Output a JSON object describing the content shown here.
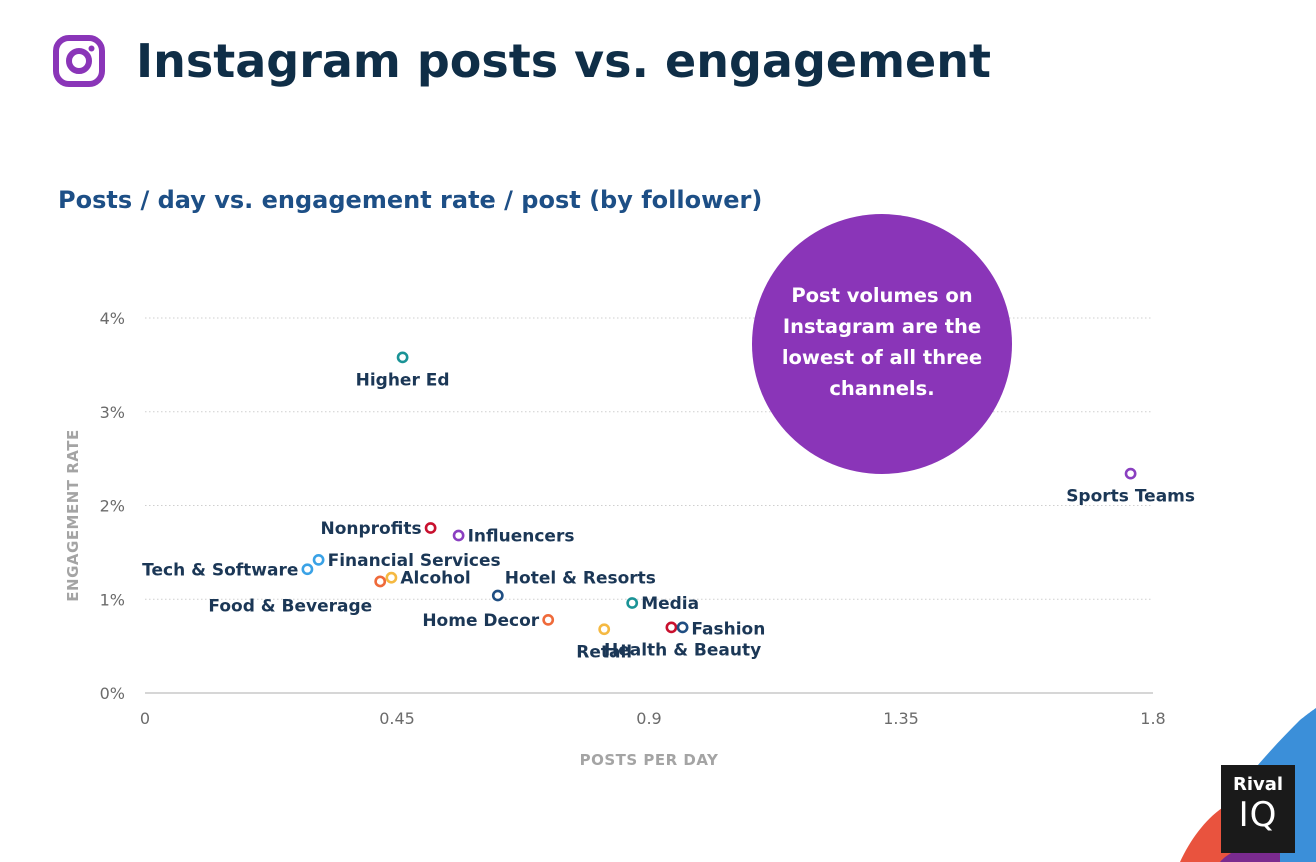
{
  "header": {
    "title": "Instagram posts vs. engagement",
    "logo_icon": "instagram-icon"
  },
  "colors": {
    "title": "#0f2e47",
    "subtitle": "#1d4f86",
    "callout_bg": "#8a35b8",
    "teal": "#1a9396",
    "purple": "#8a3fc0",
    "red": "#c8102e",
    "orange": "#ef6a3a",
    "yellow": "#f5b942",
    "light_blue": "#3aa2e6",
    "navy": "#1f4e82"
  },
  "callout": {
    "text": "Post volumes on Instagram are the lowest of all three channels."
  },
  "brand": {
    "top": "Rival",
    "bottom": "IQ"
  },
  "chart_data": {
    "type": "scatter",
    "title": "Posts / day vs. engagement rate / post (by follower)",
    "xlabel": "POSTS PER DAY",
    "ylabel": "ENGAGEMENT RATE",
    "xlim": [
      0,
      1.8
    ],
    "ylim": [
      0,
      4
    ],
    "x_ticks": [
      "0",
      "0.45",
      "0.9",
      "1.35",
      "1.8"
    ],
    "y_ticks": [
      "0%",
      "1%",
      "2%",
      "3%",
      "4%"
    ],
    "grid": "horizontal dotted",
    "points": [
      {
        "label": "Higher Ed",
        "x": 0.46,
        "y": 3.58,
        "color": "#1a9396",
        "label_pos": "below"
      },
      {
        "label": "Sports Teams",
        "x": 1.76,
        "y": 2.34,
        "color": "#8a3fc0",
        "label_pos": "below"
      },
      {
        "label": "Nonprofits",
        "x": 0.51,
        "y": 1.76,
        "color": "#c8102e",
        "label_pos": "left"
      },
      {
        "label": "Influencers",
        "x": 0.56,
        "y": 1.68,
        "color": "#8a3fc0",
        "label_pos": "right"
      },
      {
        "label": "Financial Services",
        "x": 0.31,
        "y": 1.42,
        "color": "#3aa2e6",
        "label_pos": "right"
      },
      {
        "label": "Tech & Software",
        "x": 0.29,
        "y": 1.32,
        "color": "#3aa2e6",
        "label_pos": "left"
      },
      {
        "label": "Alcohol",
        "x": 0.44,
        "y": 1.23,
        "color": "#f5b942",
        "label_pos": "right"
      },
      {
        "label": "Food & Beverage",
        "x": 0.42,
        "y": 1.19,
        "color": "#ef6a3a",
        "label_pos": "below-left"
      },
      {
        "label": "Hotel & Resorts",
        "x": 0.63,
        "y": 1.04,
        "color": "#1f4e82",
        "label_pos": "above-right"
      },
      {
        "label": "Media",
        "x": 0.87,
        "y": 0.96,
        "color": "#1a9396",
        "label_pos": "right"
      },
      {
        "label": "Home Decor",
        "x": 0.72,
        "y": 0.78,
        "color": "#ef6a3a",
        "label_pos": "left"
      },
      {
        "label": "Retail",
        "x": 0.82,
        "y": 0.68,
        "color": "#f5b942",
        "label_pos": "below"
      },
      {
        "label": "Fashion",
        "x": 0.94,
        "y": 0.7,
        "color": "#c8102e",
        "label_pos": "right-far"
      },
      {
        "label": "Health & Beauty",
        "x": 0.96,
        "y": 0.7,
        "color": "#1f4e82",
        "label_pos": "below"
      }
    ]
  }
}
